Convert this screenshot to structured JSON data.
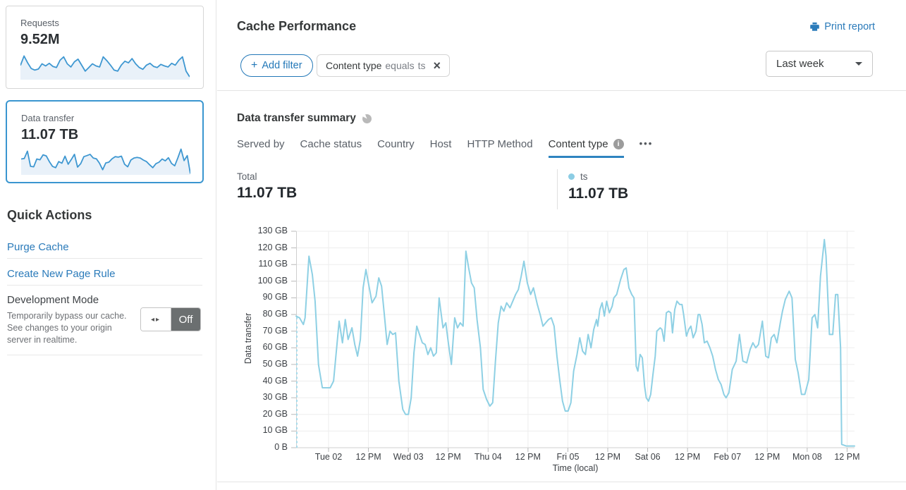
{
  "colors": {
    "accent_blue": "#2b7bba",
    "selected_card_border": "#3a96d0",
    "spark_line": "#3e97d1",
    "spark_fill": "#e9f1f9",
    "toggle_off_bg": "#6b6f70"
  },
  "icons": {
    "plus": "+",
    "close": "×",
    "more": "•••",
    "info": "i",
    "toggle_arrows": "◂▸"
  },
  "sidebar": {
    "cards": [
      {
        "label": "Requests",
        "value": "9.52M",
        "selected": false,
        "spark": [
          52,
          88,
          62,
          40,
          34,
          38,
          58,
          50,
          60,
          48,
          44,
          72,
          85,
          58,
          46,
          66,
          76,
          53,
          30,
          44,
          58,
          50,
          46,
          85,
          70,
          53,
          34,
          30,
          53,
          68,
          62,
          78,
          58,
          44,
          37,
          53,
          60,
          48,
          44,
          56,
          50,
          46,
          60,
          53,
          72,
          85,
          30,
          8
        ]
      },
      {
        "label": "Data transfer",
        "value": "11.07 TB",
        "selected": true,
        "spark": [
          58,
          60,
          88,
          30,
          28,
          58,
          55,
          74,
          70,
          48,
          30,
          25,
          48,
          42,
          69,
          38,
          56,
          76,
          27,
          40,
          67,
          71,
          76,
          62,
          59,
          42,
          17,
          43,
          46,
          59,
          67,
          65,
          69,
          38,
          28,
          54,
          62,
          64,
          62,
          54,
          48,
          36,
          25,
          40,
          46,
          58,
          51,
          63,
          41,
          32,
          62,
          96,
          52,
          71,
          2
        ]
      }
    ],
    "quick_actions": {
      "title": "Quick Actions",
      "links": [
        "Purge Cache",
        "Create New Page Rule"
      ],
      "dev_mode": {
        "title": "Development Mode",
        "description": "Temporarily bypass our cache. See changes to your origin server in realtime.",
        "toggle_state": "Off"
      }
    }
  },
  "header": {
    "title": "Cache Performance",
    "print_report": "Print report",
    "add_filter_label": "Add filter",
    "filter_chip": {
      "field": "Content type",
      "operator": "equals",
      "value": "ts"
    },
    "time_range": "Last week"
  },
  "summary": {
    "title": "Data transfer summary",
    "tabs": [
      {
        "label": "Served by",
        "active": false
      },
      {
        "label": "Cache status",
        "active": false
      },
      {
        "label": "Country",
        "active": false
      },
      {
        "label": "Host",
        "active": false
      },
      {
        "label": "HTTP Method",
        "active": false
      },
      {
        "label": "Content type",
        "active": true,
        "has_info": true
      }
    ],
    "total": {
      "label": "Total",
      "value": "11.07 TB"
    },
    "legend": {
      "name": "ts",
      "value": "11.07 TB",
      "color": "#8ccde4"
    }
  },
  "chart_data": {
    "type": "line",
    "series_name": "ts",
    "ylabel": "Data transfer",
    "xlabel": "Time (local)",
    "unit": "GB",
    "y_max": 130,
    "y_ticks": [
      "130 GB",
      "120 GB",
      "110 GB",
      "100 GB",
      "90 GB",
      "80 GB",
      "70 GB",
      "60 GB",
      "50 GB",
      "40 GB",
      "30 GB",
      "20 GB",
      "10 GB",
      "0 B"
    ],
    "x_ticks": [
      "Tue 02",
      "12 PM",
      "Wed 03",
      "12 PM",
      "Thu 04",
      "12 PM",
      "Fri 05",
      "12 PM",
      "Sat 06",
      "12 PM",
      "Feb 07",
      "12 PM",
      "Mon 08",
      "12 PM"
    ],
    "grid": true,
    "line_color": "#8ed0e4",
    "lead_in_dashed": {
      "at_x": 0,
      "from_gb": 0,
      "to_gb": 79,
      "color": "#a6dbeb"
    },
    "points": [
      [
        0,
        79
      ],
      [
        0.006,
        78
      ],
      [
        0.013,
        74
      ],
      [
        0.016,
        78
      ],
      [
        0.023,
        115
      ],
      [
        0.029,
        104
      ],
      [
        0.034,
        88
      ],
      [
        0.04,
        50
      ],
      [
        0.047,
        36
      ],
      [
        0.053,
        36
      ],
      [
        0.061,
        36
      ],
      [
        0.067,
        40
      ],
      [
        0.077,
        76
      ],
      [
        0.083,
        63
      ],
      [
        0.088,
        77
      ],
      [
        0.093,
        65
      ],
      [
        0.1,
        72
      ],
      [
        0.105,
        62
      ],
      [
        0.11,
        55
      ],
      [
        0.115,
        65
      ],
      [
        0.12,
        96
      ],
      [
        0.125,
        107
      ],
      [
        0.131,
        96
      ],
      [
        0.136,
        87
      ],
      [
        0.143,
        91
      ],
      [
        0.148,
        102
      ],
      [
        0.153,
        97
      ],
      [
        0.158,
        80
      ],
      [
        0.163,
        62
      ],
      [
        0.168,
        70
      ],
      [
        0.173,
        68
      ],
      [
        0.178,
        69
      ],
      [
        0.184,
        40
      ],
      [
        0.191,
        23
      ],
      [
        0.196,
        20
      ],
      [
        0.201,
        20
      ],
      [
        0.206,
        30
      ],
      [
        0.211,
        57
      ],
      [
        0.216,
        73
      ],
      [
        0.221,
        68
      ],
      [
        0.226,
        63
      ],
      [
        0.231,
        62
      ],
      [
        0.236,
        56
      ],
      [
        0.241,
        60
      ],
      [
        0.246,
        55
      ],
      [
        0.251,
        57
      ],
      [
        0.256,
        90
      ],
      [
        0.263,
        72
      ],
      [
        0.268,
        75
      ],
      [
        0.273,
        62
      ],
      [
        0.278,
        50
      ],
      [
        0.284,
        78
      ],
      [
        0.289,
        72
      ],
      [
        0.294,
        75
      ],
      [
        0.299,
        73
      ],
      [
        0.304,
        118
      ],
      [
        0.309,
        108
      ],
      [
        0.314,
        99
      ],
      [
        0.319,
        96
      ],
      [
        0.324,
        77
      ],
      [
        0.33,
        60
      ],
      [
        0.335,
        35
      ],
      [
        0.341,
        29
      ],
      [
        0.347,
        25
      ],
      [
        0.352,
        27
      ],
      [
        0.357,
        52
      ],
      [
        0.362,
        75
      ],
      [
        0.367,
        85
      ],
      [
        0.372,
        82
      ],
      [
        0.377,
        87
      ],
      [
        0.383,
        84
      ],
      [
        0.388,
        88
      ],
      [
        0.393,
        92
      ],
      [
        0.398,
        95
      ],
      [
        0.403,
        103
      ],
      [
        0.408,
        112
      ],
      [
        0.414,
        99
      ],
      [
        0.42,
        92
      ],
      [
        0.425,
        96
      ],
      [
        0.432,
        86
      ],
      [
        0.437,
        80
      ],
      [
        0.442,
        73
      ],
      [
        0.447,
        75
      ],
      [
        0.452,
        77
      ],
      [
        0.457,
        78
      ],
      [
        0.462,
        73
      ],
      [
        0.467,
        55
      ],
      [
        0.472,
        41
      ],
      [
        0.477,
        28
      ],
      [
        0.482,
        22
      ],
      [
        0.487,
        22
      ],
      [
        0.492,
        27
      ],
      [
        0.497,
        46
      ],
      [
        0.503,
        56
      ],
      [
        0.508,
        66
      ],
      [
        0.513,
        58
      ],
      [
        0.518,
        56
      ],
      [
        0.523,
        68
      ],
      [
        0.528,
        60
      ],
      [
        0.533,
        71
      ],
      [
        0.538,
        77
      ],
      [
        0.54,
        73
      ],
      [
        0.544,
        83
      ],
      [
        0.548,
        87
      ],
      [
        0.552,
        79
      ],
      [
        0.556,
        88
      ],
      [
        0.561,
        81
      ],
      [
        0.566,
        85
      ],
      [
        0.569,
        90
      ],
      [
        0.574,
        92
      ],
      [
        0.581,
        101
      ],
      [
        0.587,
        107
      ],
      [
        0.591,
        108
      ],
      [
        0.596,
        96
      ],
      [
        0.601,
        92
      ],
      [
        0.605,
        90
      ],
      [
        0.609,
        49
      ],
      [
        0.612,
        46
      ],
      [
        0.616,
        56
      ],
      [
        0.62,
        54
      ],
      [
        0.624,
        37
      ],
      [
        0.627,
        30
      ],
      [
        0.631,
        28
      ],
      [
        0.635,
        32
      ],
      [
        0.639,
        44
      ],
      [
        0.643,
        55
      ],
      [
        0.646,
        70
      ],
      [
        0.652,
        72
      ],
      [
        0.655,
        71
      ],
      [
        0.659,
        64
      ],
      [
        0.663,
        81
      ],
      [
        0.667,
        82
      ],
      [
        0.671,
        81
      ],
      [
        0.674,
        69
      ],
      [
        0.678,
        83
      ],
      [
        0.682,
        88
      ],
      [
        0.687,
        86
      ],
      [
        0.691,
        86
      ],
      [
        0.694,
        80
      ],
      [
        0.699,
        67
      ],
      [
        0.703,
        71
      ],
      [
        0.707,
        73
      ],
      [
        0.711,
        66
      ],
      [
        0.716,
        70
      ],
      [
        0.72,
        80
      ],
      [
        0.723,
        80
      ],
      [
        0.727,
        74
      ],
      [
        0.731,
        63
      ],
      [
        0.736,
        64
      ],
      [
        0.741,
        60
      ],
      [
        0.746,
        55
      ],
      [
        0.751,
        47
      ],
      [
        0.756,
        41
      ],
      [
        0.761,
        38
      ],
      [
        0.766,
        32
      ],
      [
        0.77,
        30
      ],
      [
        0.775,
        33
      ],
      [
        0.781,
        47
      ],
      [
        0.788,
        52
      ],
      [
        0.794,
        68
      ],
      [
        0.8,
        52
      ],
      [
        0.807,
        51
      ],
      [
        0.813,
        59
      ],
      [
        0.818,
        63
      ],
      [
        0.823,
        60
      ],
      [
        0.828,
        62
      ],
      [
        0.835,
        76
      ],
      [
        0.841,
        55
      ],
      [
        0.846,
        54
      ],
      [
        0.851,
        66
      ],
      [
        0.856,
        68
      ],
      [
        0.861,
        63
      ],
      [
        0.867,
        75
      ],
      [
        0.871,
        82
      ],
      [
        0.876,
        89
      ],
      [
        0.883,
        94
      ],
      [
        0.888,
        90
      ],
      [
        0.894,
        53
      ],
      [
        0.899,
        45
      ],
      [
        0.905,
        32
      ],
      [
        0.911,
        32
      ],
      [
        0.918,
        41
      ],
      [
        0.924,
        78
      ],
      [
        0.929,
        80
      ],
      [
        0.934,
        72
      ],
      [
        0.939,
        103
      ],
      [
        0.946,
        125
      ],
      [
        0.949,
        115
      ],
      [
        0.955,
        68
      ],
      [
        0.961,
        68
      ],
      [
        0.966,
        92
      ],
      [
        0.97,
        92
      ],
      [
        0.975,
        60
      ],
      [
        0.977,
        2
      ],
      [
        0.985,
        1
      ],
      [
        0.992,
        1
      ],
      [
        1,
        1
      ]
    ]
  }
}
